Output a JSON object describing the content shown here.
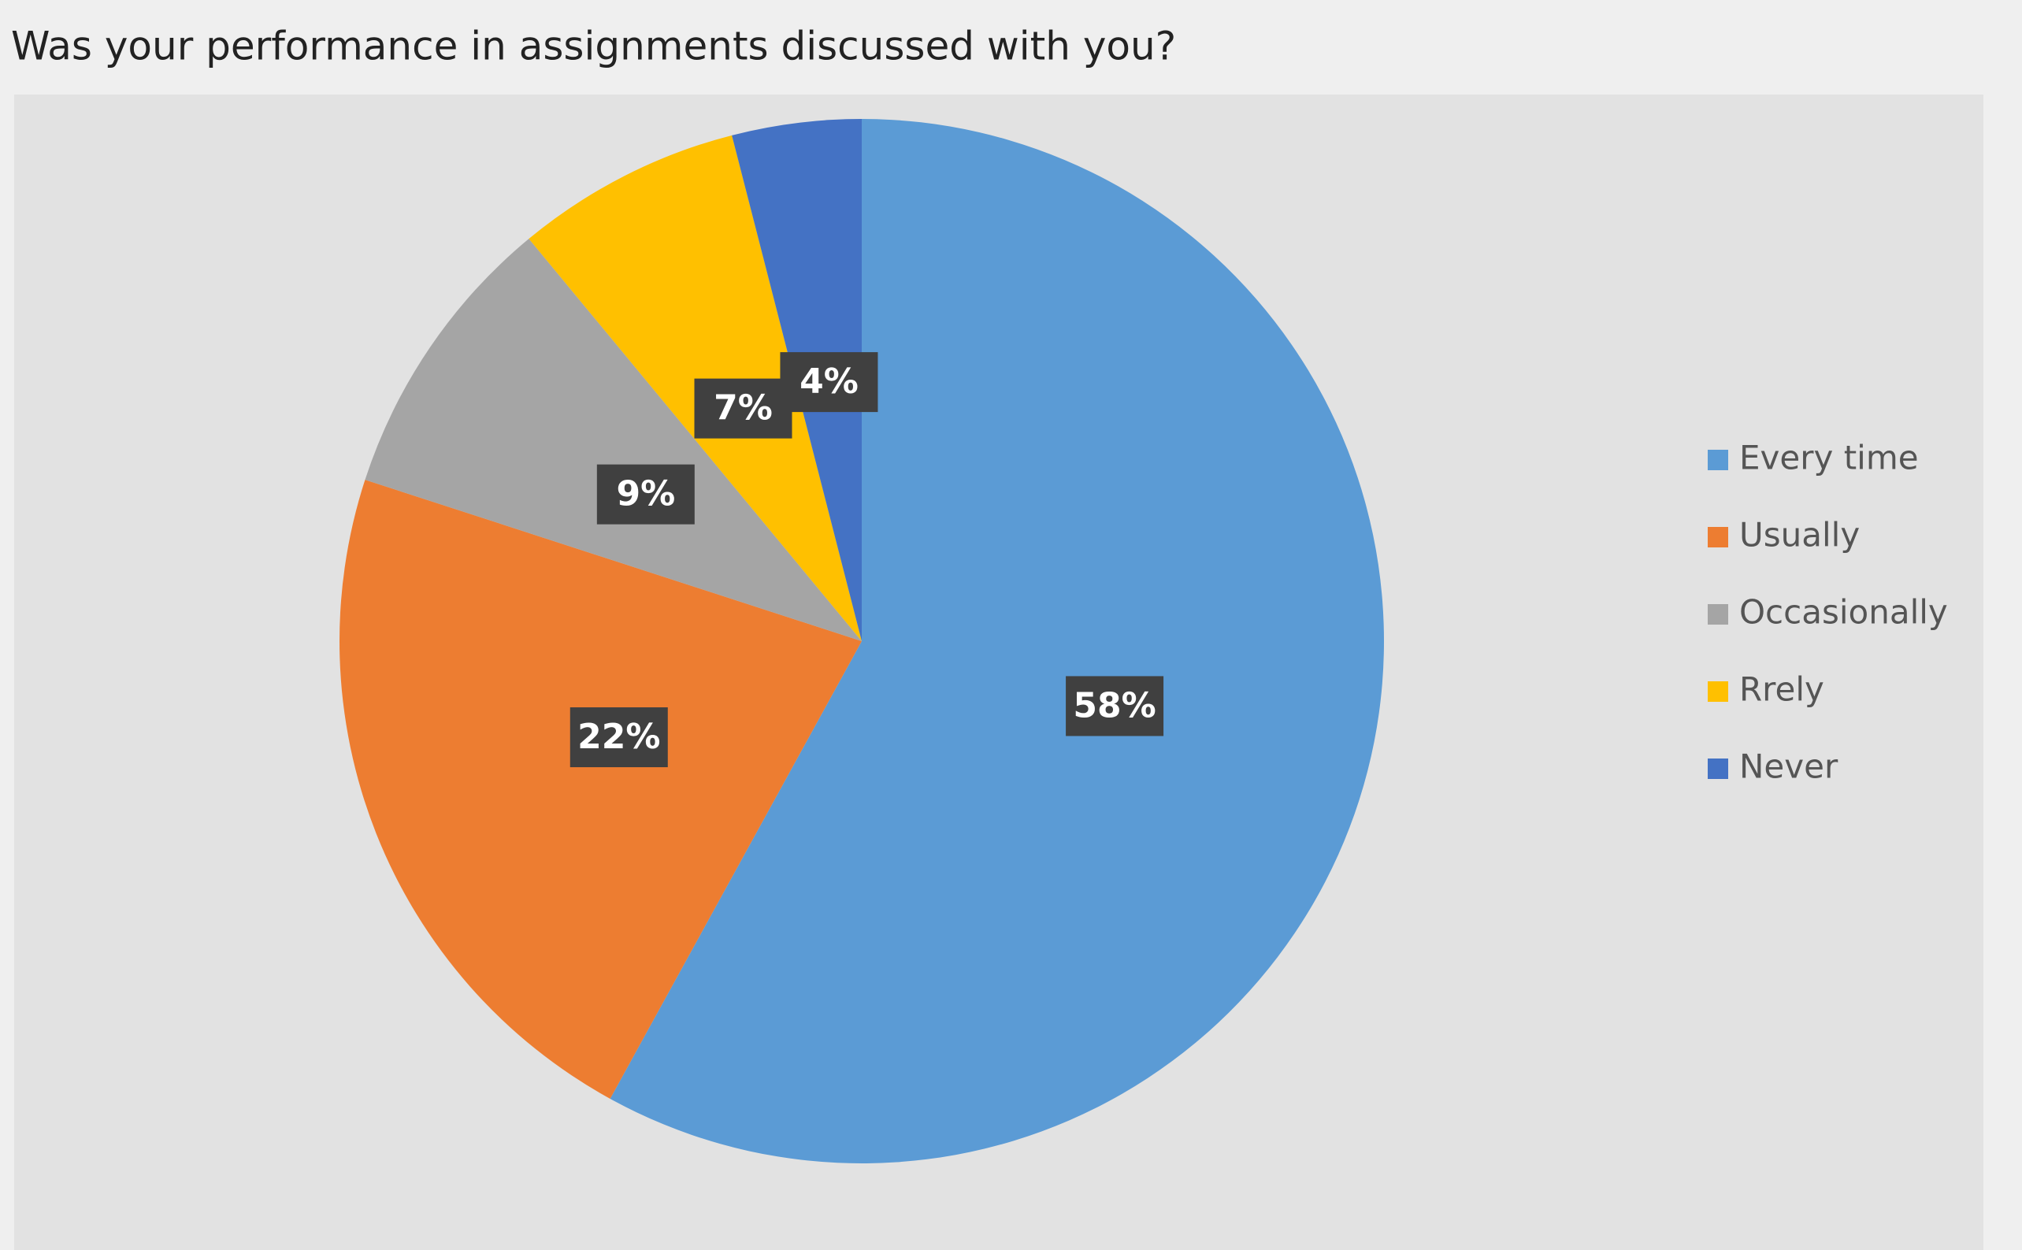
{
  "chart_data": {
    "type": "pie",
    "title": "Was your performance in assignments discussed with you?",
    "categories": [
      "Every time",
      "Usually",
      "Occasionally",
      "Rrely",
      "Never"
    ],
    "values": [
      58,
      22,
      9,
      7,
      4
    ],
    "value_labels": [
      "58%",
      "22%",
      "9%",
      "7%",
      "4%"
    ],
    "colors": [
      "#5b9bd5",
      "#ed7d31",
      "#a5a5a5",
      "#ffc000",
      "#4472c4"
    ],
    "legend": "right"
  }
}
